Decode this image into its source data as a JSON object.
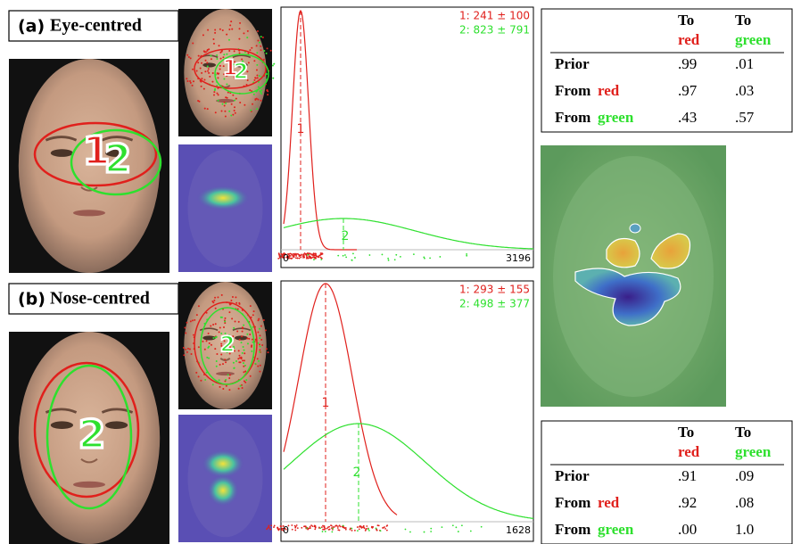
{
  "panels": [
    {
      "label": "(a)",
      "title": "Eye-centred",
      "face_labels": [
        "1",
        "2"
      ],
      "legend": [
        "1: 241 ± 100",
        "2: 823 ± 791"
      ],
      "axis": [
        "0",
        "3196"
      ],
      "curve_labels": [
        "1",
        "2"
      ]
    },
    {
      "label": "(b)",
      "title": "Nose-centred",
      "face_labels": [
        "2"
      ],
      "legend": [
        "1: 293 ± 155",
        "2: 498 ± 377"
      ],
      "axis": [
        "0",
        "1628"
      ],
      "curve_labels": [
        "1",
        "2"
      ]
    }
  ],
  "tables": [
    {
      "header": [
        [
          "To",
          "red"
        ],
        [
          "To",
          "green"
        ]
      ],
      "rows": [
        {
          "label": [
            "Prior"
          ],
          "values": [
            ".99",
            ".01"
          ]
        },
        {
          "label": [
            "From",
            "red"
          ],
          "values": [
            ".97",
            ".03"
          ]
        },
        {
          "label": [
            "From",
            "green"
          ],
          "values": [
            ".43",
            ".57"
          ]
        }
      ]
    },
    {
      "header": [
        [
          "To",
          "red"
        ],
        [
          "To",
          "green"
        ]
      ],
      "rows": [
        {
          "label": [
            "Prior"
          ],
          "values": [
            ".91",
            ".09"
          ]
        },
        {
          "label": [
            "From",
            "red"
          ],
          "values": [
            ".92",
            ".08"
          ]
        },
        {
          "label": [
            "From",
            "green"
          ],
          "values": [
            ".00",
            "1.0"
          ]
        }
      ]
    }
  ]
}
